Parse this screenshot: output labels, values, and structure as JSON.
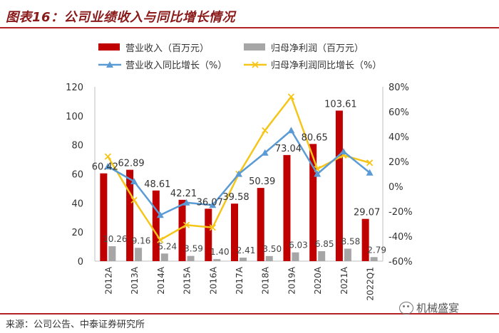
{
  "header": {
    "title": "图表16：公司业绩收入与同比增长情况"
  },
  "footer": {
    "source": "来源：公司公告、中泰证券研究所",
    "watermark": "机械盛宴"
  },
  "colors": {
    "revenue": "#c00000",
    "net_profit": "#a6a6a6",
    "revenue_growth": "#5b9bd5",
    "profit_growth": "#f5c518"
  },
  "chart_data": {
    "type": "bar",
    "title": "公司业绩收入与同比增长情况",
    "categories": [
      "2012A",
      "2013A",
      "2014A",
      "2015A",
      "2016A",
      "2017A",
      "2018A",
      "2019A",
      "2020A",
      "2021A",
      "2022Q1"
    ],
    "series": [
      {
        "name": "营业收入（百万元）",
        "type": "bar",
        "axis": "left",
        "values": [
          60.42,
          62.89,
          48.61,
          42.21,
          36.07,
          39.58,
          50.39,
          73.04,
          80.65,
          103.61,
          29.07
        ],
        "labels": [
          "60.42",
          "62.89",
          "48.61",
          "42.21",
          "36.07",
          "39.58",
          "50.39",
          "73.04",
          "80.65",
          "103.61",
          "29.07"
        ]
      },
      {
        "name": "归母净利润（百万元）",
        "type": "bar",
        "axis": "left",
        "values": [
          10.26,
          9.16,
          5.24,
          3.59,
          1.4,
          2.41,
          3.5,
          6.03,
          6.85,
          8.58,
          2.79
        ],
        "labels": [
          "10.26",
          "9.16",
          "5.24",
          "3.59",
          "1.40",
          "2.41",
          "3.50",
          "6.03",
          "6.85",
          "8.58",
          "2.79"
        ]
      },
      {
        "name": "营业收入同比增长（%）",
        "type": "line",
        "axis": "right",
        "values": [
          16,
          4,
          -23,
          -13,
          -15,
          10,
          27,
          45,
          10,
          28,
          11
        ]
      },
      {
        "name": "归母净利润同比增长（%）",
        "type": "line",
        "axis": "right",
        "values": [
          24,
          -11,
          -43,
          -31,
          -33,
          10,
          45,
          72,
          14,
          25,
          19
        ]
      }
    ],
    "y_left": {
      "range": [
        0,
        120
      ],
      "ticks": [
        "0",
        "20",
        "40",
        "60",
        "80",
        "100",
        "120"
      ]
    },
    "y_right": {
      "range": [
        -60,
        80
      ],
      "ticks": [
        "-60%",
        "-40%",
        "-20%",
        "0%",
        "20%",
        "40%",
        "60%",
        "80%"
      ]
    },
    "legend": {
      "position": "top"
    }
  }
}
